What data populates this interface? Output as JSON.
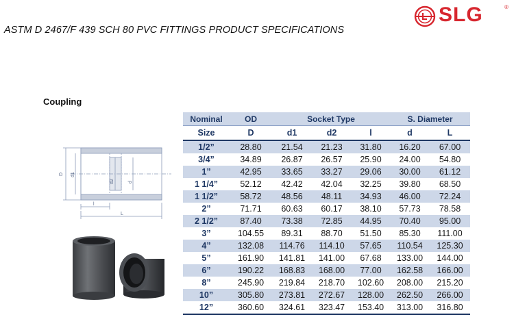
{
  "title": "ASTM D 2467/F 439 SCH 80 PVC FITTINGS PRODUCT SPECIFICATIONS",
  "brand": {
    "name": "SLG",
    "mark": "®",
    "color": "#d7262e",
    "icon": "slg-logo-icon"
  },
  "section_title": "Coupling",
  "drawing": {
    "labels": {
      "D": "D",
      "d1": "d1",
      "d2": "d2",
      "d": "d",
      "l": "l",
      "L": "L"
    }
  },
  "table": {
    "group_headers": [
      "Nominal",
      "OD",
      "Socket Type",
      "S. Diameter"
    ],
    "column_headers": [
      "Size",
      "D",
      "d1",
      "d2",
      "l",
      "d",
      "L"
    ],
    "rows": [
      [
        "1/2”",
        "28.80",
        "21.54",
        "21.23",
        "31.80",
        "16.20",
        "67.00"
      ],
      [
        "3/4”",
        "34.89",
        "26.87",
        "26.57",
        "25.90",
        "24.00",
        "54.80"
      ],
      [
        "1”",
        "42.95",
        "33.65",
        "33.27",
        "29.06",
        "30.00",
        "61.12"
      ],
      [
        "1 1/4”",
        "52.12",
        "42.42",
        "42.04",
        "32.25",
        "39.80",
        "68.50"
      ],
      [
        "1 1/2”",
        "58.72",
        "48.56",
        "48.11",
        "34.93",
        "46.00",
        "72.24"
      ],
      [
        "2”",
        "71.71",
        "60.63",
        "60.17",
        "38.10",
        "57.73",
        "78.58"
      ],
      [
        "2 1/2”",
        "87.40",
        "73.38",
        "72.85",
        "44.95",
        "70.40",
        "95.00"
      ],
      [
        "3”",
        "104.55",
        "89.31",
        "88.70",
        "51.50",
        "85.30",
        "111.00"
      ],
      [
        "4”",
        "132.08",
        "114.76",
        "114.10",
        "57.65",
        "110.54",
        "125.30"
      ],
      [
        "5”",
        "161.90",
        "141.81",
        "141.00",
        "67.68",
        "133.00",
        "144.00"
      ],
      [
        "6”",
        "190.22",
        "168.83",
        "168.00",
        "77.00",
        "162.58",
        "166.00"
      ],
      [
        "8”",
        "245.90",
        "219.84",
        "218.70",
        "102.60",
        "208.00",
        "215.20"
      ],
      [
        "10”",
        "305.80",
        "273.81",
        "272.67",
        "128.00",
        "262.50",
        "266.00"
      ],
      [
        "12”",
        "360.60",
        "324.61",
        "323.47",
        "153.40",
        "313.00",
        "316.80"
      ]
    ]
  }
}
